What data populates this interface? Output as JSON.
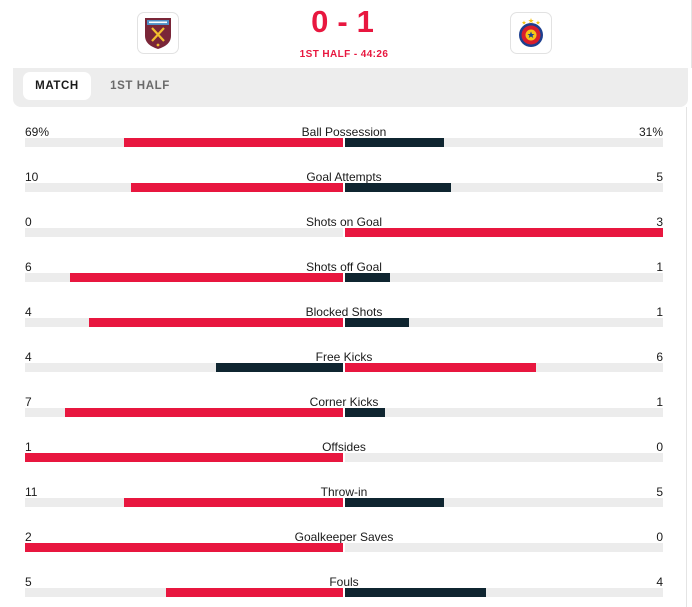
{
  "header": {
    "home_team": {
      "score": "0",
      "logo_icon": "west-ham-crest-icon"
    },
    "away_team": {
      "score": "1",
      "logo_icon": "fcsb-crest-icon"
    },
    "score_separator": "-",
    "status": "1ST HALF - 44:26"
  },
  "tabs": [
    {
      "label": "MATCH",
      "active": true
    },
    {
      "label": "1ST HALF",
      "active": false
    }
  ],
  "colors": {
    "leader": "#e8173f",
    "trailer": "#0f2530",
    "track": "#ececec"
  },
  "stats": [
    {
      "label": "Ball Possession",
      "home": "69%",
      "away": "31%",
      "home_value": 69,
      "away_value": 31
    },
    {
      "label": "Goal Attempts",
      "home": "10",
      "away": "5",
      "home_value": 10,
      "away_value": 5
    },
    {
      "label": "Shots on Goal",
      "home": "0",
      "away": "3",
      "home_value": 0,
      "away_value": 3
    },
    {
      "label": "Shots off Goal",
      "home": "6",
      "away": "1",
      "home_value": 6,
      "away_value": 1
    },
    {
      "label": "Blocked Shots",
      "home": "4",
      "away": "1",
      "home_value": 4,
      "away_value": 1
    },
    {
      "label": "Free Kicks",
      "home": "4",
      "away": "6",
      "home_value": 4,
      "away_value": 6
    },
    {
      "label": "Corner Kicks",
      "home": "7",
      "away": "1",
      "home_value": 7,
      "away_value": 1
    },
    {
      "label": "Offsides",
      "home": "1",
      "away": "0",
      "home_value": 1,
      "away_value": 0
    },
    {
      "label": "Throw-in",
      "home": "11",
      "away": "5",
      "home_value": 11,
      "away_value": 5
    },
    {
      "label": "Goalkeeper Saves",
      "home": "2",
      "away": "0",
      "home_value": 2,
      "away_value": 0
    },
    {
      "label": "Fouls",
      "home": "5",
      "away": "4",
      "home_value": 5,
      "away_value": 4
    }
  ]
}
